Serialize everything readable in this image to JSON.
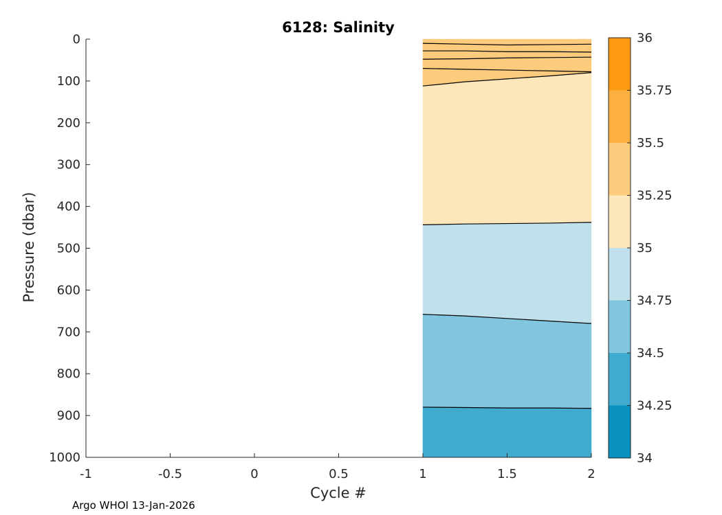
{
  "chart_data": {
    "type": "contour",
    "title": "6128:  Salinity",
    "xlabel": "Cycle #",
    "ylabel": "Pressure (dbar)",
    "xlim": [
      -1,
      2
    ],
    "ylim": [
      1000,
      0
    ],
    "y_reversed": true,
    "x_ticks": [
      "-1",
      "-0.5",
      "0",
      "0.5",
      "1",
      "1.5",
      "2"
    ],
    "y_ticks": [
      "0",
      "100",
      "200",
      "300",
      "400",
      "500",
      "600",
      "700",
      "800",
      "900",
      "1000"
    ],
    "colorbar": {
      "ticks": [
        "34",
        "34.25",
        "34.5",
        "34.75",
        "35",
        "35.25",
        "35.5",
        "35.75",
        "36"
      ],
      "levels": [
        {
          "from": 34.0,
          "to": 34.25,
          "color": "#0a93bf"
        },
        {
          "from": 34.25,
          "to": 34.5,
          "color": "#40abcf"
        },
        {
          "from": 34.5,
          "to": 34.75,
          "color": "#82c5de"
        },
        {
          "from": 34.75,
          "to": 35.0,
          "color": "#c0e1ec"
        },
        {
          "from": 35.0,
          "to": 35.25,
          "color": "#fde6ba"
        },
        {
          "from": 35.25,
          "to": 35.5,
          "color": "#fccb7c"
        },
        {
          "from": 35.5,
          "to": 35.75,
          "color": "#fcb040"
        },
        {
          "from": 35.75,
          "to": 36.0,
          "color": "#fd9a12"
        }
      ]
    },
    "cycles": [
      1,
      1.25,
      1.5,
      1.75,
      2
    ],
    "contours": [
      {
        "level": 35.5,
        "pressure": [
          10,
          12,
          14,
          13,
          12
        ]
      },
      {
        "level": 35.5,
        "pressure": [
          28,
          28,
          30,
          30,
          31
        ]
      },
      {
        "level": 35.5,
        "pressure": [
          48,
          47,
          45,
          44,
          43
        ]
      },
      {
        "level": 35.5,
        "pressure": [
          70,
          72,
          74,
          76,
          78
        ]
      },
      {
        "level": 35.25,
        "pressure": [
          112,
          102,
          95,
          88,
          80
        ]
      },
      {
        "level": 35.0,
        "pressure": [
          444,
          442,
          441,
          440,
          438
        ]
      },
      {
        "level": 34.75,
        "pressure": [
          658,
          662,
          668,
          674,
          680
        ]
      },
      {
        "level": 34.5,
        "pressure": [
          880,
          881,
          882,
          882,
          883
        ]
      }
    ],
    "bands": [
      {
        "top": 0,
        "bottom": "c0",
        "color": "#fccb7c"
      },
      {
        "top": "c0",
        "bottom": "c1",
        "color": "#fccb7c"
      },
      {
        "top": "c1",
        "bottom": "c2",
        "color": "#fccb7c"
      },
      {
        "top": "c2",
        "bottom": "c3",
        "color": "#fccb7c"
      },
      {
        "top": "c3",
        "bottom": "c4",
        "color": "#fccb7c"
      },
      {
        "top": "c4",
        "bottom": "c5",
        "color": "#fde6ba"
      },
      {
        "top": "c5",
        "bottom": "c6",
        "color": "#c0e1ec"
      },
      {
        "top": "c6",
        "bottom": "c7",
        "color": "#82c5de"
      },
      {
        "top": "c7",
        "bottom": 1000,
        "color": "#40abcf"
      }
    ]
  },
  "footer": "Argo WHOI 13-Jan-2026"
}
